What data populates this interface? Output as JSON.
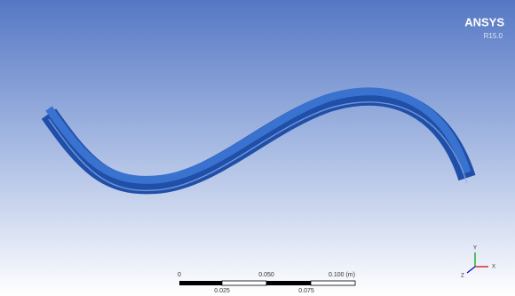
{
  "logo": {
    "brand": "ANSYS",
    "version": "R15.0"
  },
  "scale_bar": {
    "labels_top": [
      "0",
      "0.050",
      "0.100 (m)"
    ],
    "labels_bottom": [
      "0.025",
      "0.075"
    ]
  },
  "triad": {
    "axes": [
      "X",
      "Y",
      "Z"
    ]
  }
}
